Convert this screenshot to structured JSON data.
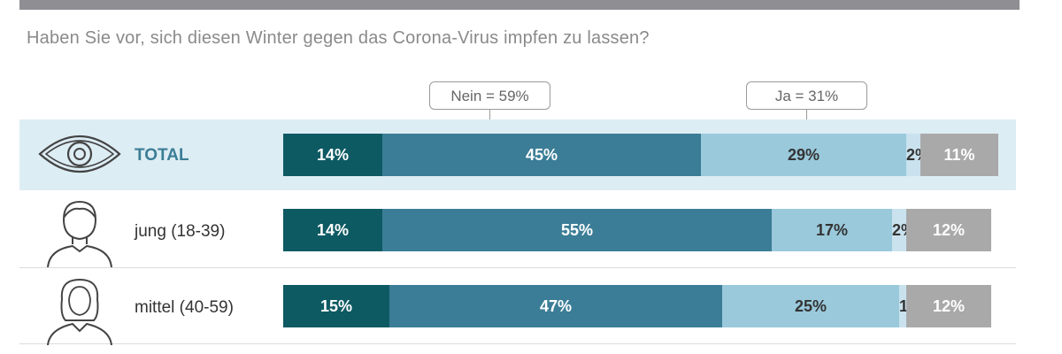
{
  "question": "Haben Sie vor, sich diesen Winter gegen das Corona-Virus impfen zu lassen?",
  "callouts": {
    "nein": "Nein = 59%",
    "ja": "Ja = 31%"
  },
  "colors": {
    "dark_teal": "#0e5a63",
    "mid_teal": "#3b7d96",
    "light_blue": "#9ac9dc",
    "pale_blue": "#c9e2ee",
    "grey": "#a9a9a9",
    "highlight_row": "#ddedf4",
    "total_label": "#3b7d96"
  },
  "rows": [
    {
      "label": "TOTAL",
      "icon": "eye-icon",
      "highlight": true,
      "values": [
        14,
        45,
        29,
        2,
        11
      ],
      "labels": [
        "14%",
        "45%",
        "29%",
        "2%",
        "11%"
      ]
    },
    {
      "label": "jung (18-39)",
      "icon": "male-person-icon",
      "highlight": false,
      "values": [
        14,
        55,
        17,
        2,
        12
      ],
      "labels": [
        "14%",
        "55%",
        "17%",
        "2%",
        "12%"
      ]
    },
    {
      "label": "mittel (40-59)",
      "icon": "female-person-icon",
      "highlight": false,
      "values": [
        15,
        47,
        25,
        1,
        12
      ],
      "labels": [
        "15%",
        "47%",
        "25%",
        "1%",
        "12%"
      ]
    }
  ],
  "chart_data": {
    "type": "bar",
    "orientation": "horizontal-stacked",
    "title": "Haben Sie vor, sich diesen Winter gegen das Corona-Virus impfen zu lassen?",
    "categories": [
      "TOTAL",
      "jung (18-39)",
      "mittel (40-59)"
    ],
    "series": [
      {
        "values": [
          14,
          14,
          15
        ]
      },
      {
        "values": [
          45,
          55,
          47
        ]
      },
      {
        "values": [
          29,
          17,
          25
        ]
      },
      {
        "values": [
          2,
          2,
          1
        ]
      },
      {
        "values": [
          11,
          12,
          12
        ]
      }
    ],
    "annotations": [
      "Nein = 59%",
      "Ja = 31%"
    ],
    "xlim": [
      0,
      100
    ]
  }
}
